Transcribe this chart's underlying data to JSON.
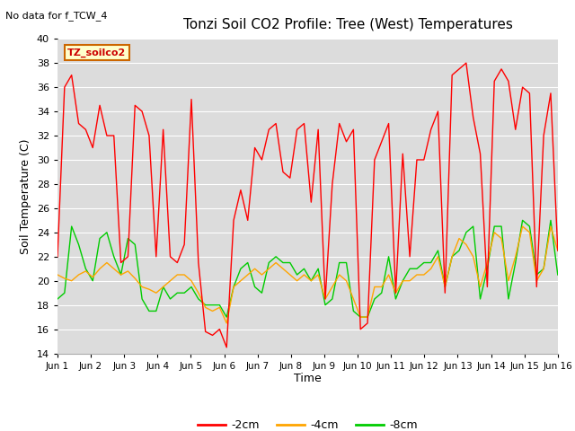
{
  "title": "Tonzi Soil CO2 Profile: Tree (West) Temperatures",
  "subtitle": "No data for f_TCW_4",
  "ylabel": "Soil Temperature (C)",
  "xlabel": "Time",
  "legend_label": "TZ_soilco2",
  "ylim": [
    14,
    40
  ],
  "yticks": [
    14,
    16,
    18,
    20,
    22,
    24,
    26,
    28,
    30,
    32,
    34,
    36,
    38,
    40
  ],
  "series_labels": [
    "-2cm",
    "-4cm",
    "-8cm"
  ],
  "series_colors": [
    "#ff0000",
    "#ffa500",
    "#00cc00"
  ],
  "bg_color": "#dcdcdc",
  "line_width": 1.0,
  "x_tick_labels": [
    "Jun 1",
    "Jun 2",
    "Jun 3",
    "Jun 4",
    "Jun 5",
    "Jun 6",
    "Jun 7",
    "Jun 8",
    "Jun 9",
    "Jun 10",
    "Jun 11",
    "Jun 12",
    "Jun 13",
    "Jun 14",
    "Jun 15",
    "Jun 16"
  ],
  "red_data": [
    22.0,
    36.0,
    37.0,
    33.0,
    32.5,
    31.0,
    34.5,
    32.0,
    32.0,
    21.5,
    22.0,
    34.5,
    34.0,
    32.0,
    22.0,
    32.5,
    22.0,
    21.5,
    23.0,
    35.0,
    21.5,
    15.8,
    15.5,
    16.0,
    14.5,
    25.0,
    27.5,
    25.0,
    31.0,
    30.0,
    32.5,
    33.0,
    29.0,
    28.5,
    32.5,
    33.0,
    26.5,
    32.5,
    18.5,
    28.0,
    33.0,
    31.5,
    32.5,
    16.0,
    16.5,
    30.0,
    31.5,
    33.0,
    19.0,
    30.5,
    22.0,
    30.0,
    30.0,
    32.5,
    34.0,
    19.0,
    37.0,
    37.5,
    38.0,
    33.5,
    30.5,
    19.5,
    36.5,
    37.5,
    36.5,
    32.5,
    36.0,
    35.5,
    19.5,
    32.0,
    35.5,
    22.5
  ],
  "orange_data": [
    20.5,
    20.2,
    20.0,
    20.5,
    20.8,
    20.3,
    21.0,
    21.5,
    21.0,
    20.5,
    20.8,
    20.2,
    19.5,
    19.3,
    19.0,
    19.5,
    20.0,
    20.5,
    20.5,
    20.0,
    19.0,
    17.8,
    17.5,
    17.8,
    16.5,
    19.5,
    20.0,
    20.5,
    21.0,
    20.5,
    21.0,
    21.5,
    21.0,
    20.5,
    20.0,
    20.5,
    20.0,
    20.5,
    18.5,
    19.5,
    20.5,
    20.0,
    18.5,
    17.0,
    17.0,
    19.5,
    19.5,
    20.5,
    19.0,
    20.0,
    20.0,
    20.5,
    20.5,
    21.0,
    22.0,
    19.5,
    22.0,
    23.5,
    23.0,
    22.0,
    19.5,
    21.5,
    24.0,
    23.5,
    20.0,
    22.0,
    24.5,
    24.0,
    20.0,
    21.0,
    24.5,
    22.5
  ],
  "green_data": [
    18.5,
    19.0,
    24.5,
    23.0,
    21.0,
    20.0,
    23.5,
    24.0,
    22.0,
    20.5,
    23.5,
    23.0,
    18.5,
    17.5,
    17.5,
    19.5,
    18.5,
    19.0,
    19.0,
    19.5,
    18.5,
    18.0,
    18.0,
    18.0,
    17.0,
    19.5,
    21.0,
    21.5,
    19.5,
    19.0,
    21.5,
    22.0,
    21.5,
    21.5,
    20.5,
    21.0,
    20.0,
    21.0,
    18.0,
    18.5,
    21.5,
    21.5,
    17.5,
    17.0,
    17.0,
    18.5,
    19.0,
    22.0,
    18.5,
    20.0,
    21.0,
    21.0,
    21.5,
    21.5,
    22.5,
    19.5,
    22.0,
    22.5,
    24.0,
    24.5,
    18.5,
    21.0,
    24.5,
    24.5,
    18.5,
    21.5,
    25.0,
    24.5,
    20.5,
    21.0,
    25.0,
    20.5
  ]
}
